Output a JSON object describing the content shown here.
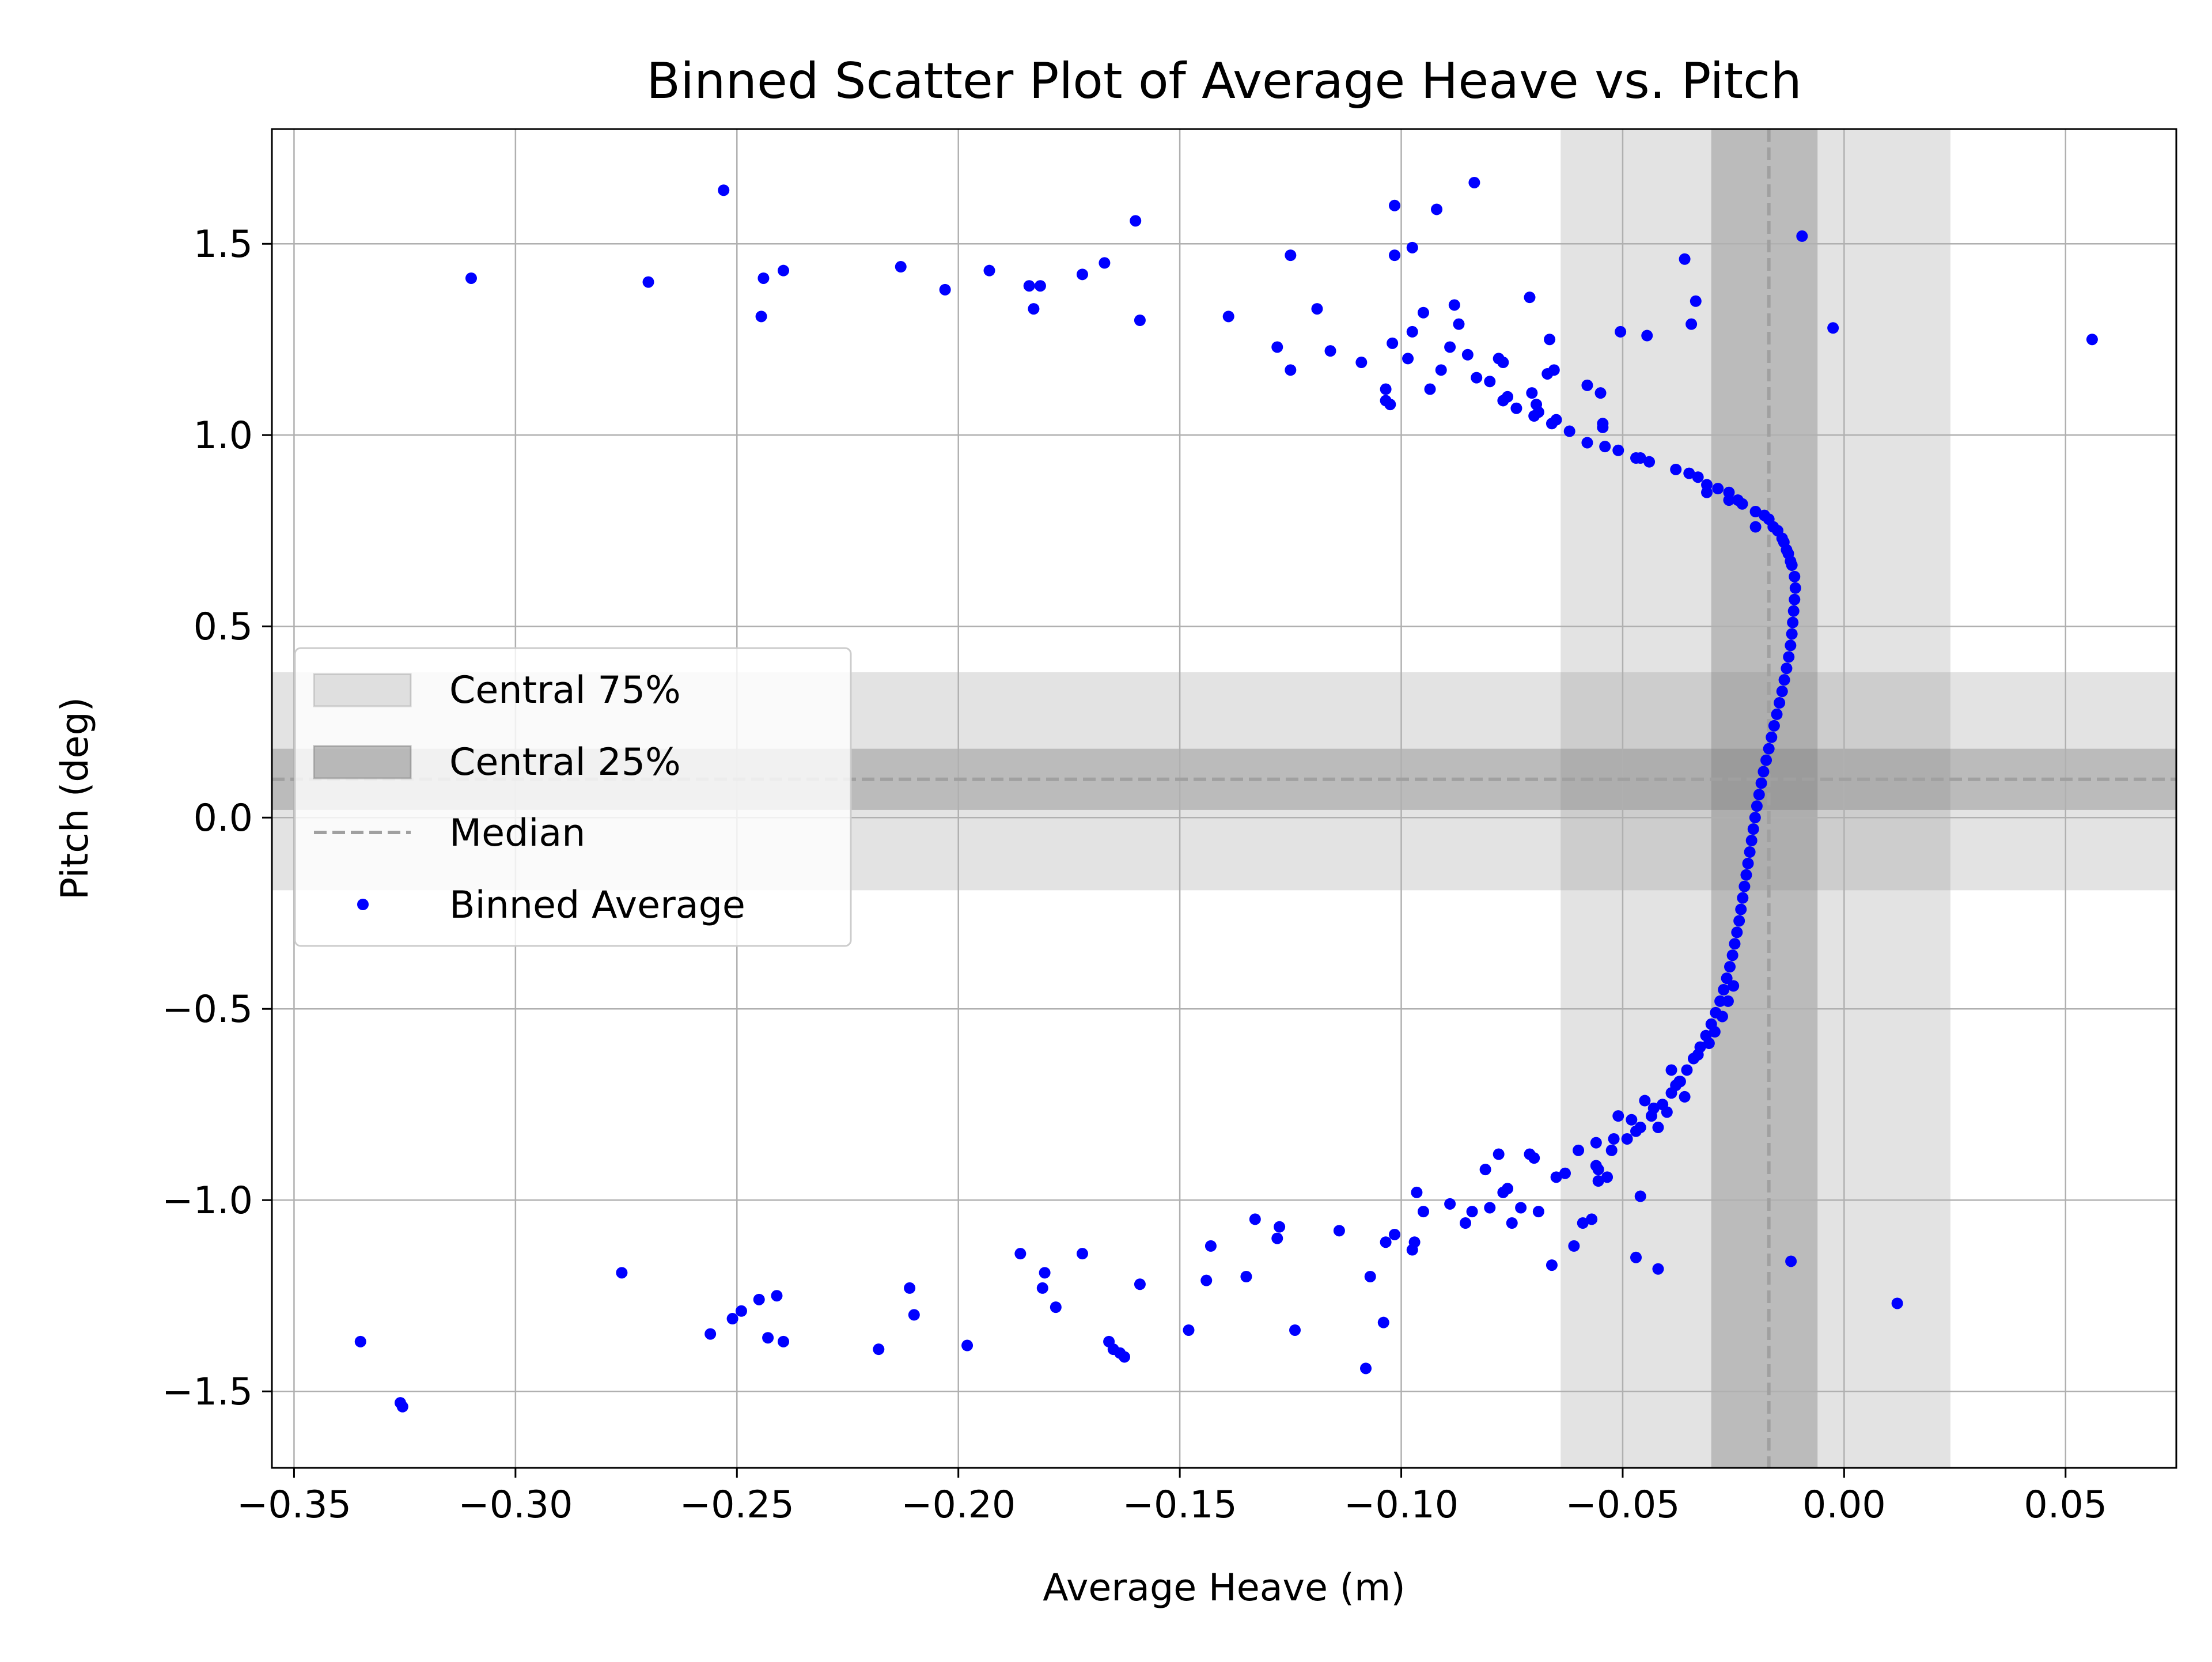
{
  "chart_data": {
    "type": "scatter",
    "title": "Binned Scatter Plot of Average Heave vs. Pitch",
    "xlabel": "Average Heave (m)",
    "ylabel": "Pitch (deg)",
    "xlim": [
      -0.355,
      0.075
    ],
    "ylim": [
      -1.7,
      1.8
    ],
    "xticks": [
      -0.35,
      -0.3,
      -0.25,
      -0.2,
      -0.15,
      -0.1,
      -0.05,
      0.0,
      0.05
    ],
    "xtick_labels": [
      "−0.35",
      "−0.30",
      "−0.25",
      "−0.20",
      "−0.15",
      "−0.10",
      "−0.05",
      "0.00",
      "0.05"
    ],
    "yticks": [
      -1.5,
      -1.0,
      -0.5,
      0.0,
      0.5,
      1.0,
      1.5
    ],
    "ytick_labels": [
      "−1.5",
      "−1.0",
      "−0.5",
      "0.0",
      "0.5",
      "1.0",
      "1.5"
    ],
    "grid": true,
    "legend_position": "center-left",
    "legend": [
      {
        "label": "Central 75%",
        "kind": "band-light"
      },
      {
        "label": "Central 25%",
        "kind": "band-dark"
      },
      {
        "label": "Median",
        "kind": "dashed-line"
      },
      {
        "label": "Binned Average",
        "kind": "marker"
      }
    ],
    "colors": {
      "points": "#0000ff",
      "median": "#a0a0a0",
      "band_light": "#808080",
      "band_dark": "#808080",
      "grid": "#b0b0b0"
    },
    "bands": {
      "x_central_75": [
        -0.064,
        0.024
      ],
      "x_central_25": [
        -0.03,
        -0.006
      ],
      "x_median": -0.017,
      "y_central_75": [
        -0.19,
        0.38
      ],
      "y_central_25": [
        0.02,
        0.18
      ],
      "y_median": 0.1
    },
    "series": [
      {
        "name": "Binned Average",
        "points": [
          [
            -0.011,
            0.6
          ],
          [
            -0.0112,
            0.57
          ],
          [
            -0.0114,
            0.54
          ],
          [
            -0.0116,
            0.51
          ],
          [
            -0.0118,
            0.48
          ],
          [
            -0.0121,
            0.45
          ],
          [
            -0.0125,
            0.42
          ],
          [
            -0.013,
            0.39
          ],
          [
            -0.0135,
            0.36
          ],
          [
            -0.014,
            0.33
          ],
          [
            -0.0146,
            0.3
          ],
          [
            -0.0152,
            0.27
          ],
          [
            -0.0158,
            0.24
          ],
          [
            -0.0164,
            0.21
          ],
          [
            -0.017,
            0.18
          ],
          [
            -0.0176,
            0.15
          ],
          [
            -0.0182,
            0.12
          ],
          [
            -0.0187,
            0.09
          ],
          [
            -0.0192,
            0.06
          ],
          [
            -0.0197,
            0.03
          ],
          [
            -0.0201,
            0.0
          ],
          [
            -0.0205,
            -0.03
          ],
          [
            -0.0209,
            -0.06
          ],
          [
            -0.0213,
            -0.09
          ],
          [
            -0.0217,
            -0.12
          ],
          [
            -0.0221,
            -0.15
          ],
          [
            -0.0225,
            -0.18
          ],
          [
            -0.0229,
            -0.21
          ],
          [
            -0.0233,
            -0.24
          ],
          [
            -0.0237,
            -0.27
          ],
          [
            -0.0242,
            -0.3
          ],
          [
            -0.0247,
            -0.33
          ],
          [
            -0.0252,
            -0.36
          ],
          [
            -0.0258,
            -0.39
          ],
          [
            -0.0265,
            -0.42
          ],
          [
            -0.0272,
            -0.45
          ],
          [
            -0.028,
            -0.48
          ],
          [
            -0.029,
            -0.51
          ],
          [
            -0.03,
            -0.54
          ],
          [
            -0.0312,
            -0.57
          ],
          [
            -0.0325,
            -0.6
          ],
          [
            -0.034,
            -0.63
          ],
          [
            -0.0355,
            -0.66
          ],
          [
            -0.0372,
            -0.69
          ],
          [
            -0.039,
            -0.72
          ],
          [
            -0.041,
            -0.75
          ],
          [
            -0.0435,
            -0.78
          ],
          [
            -0.046,
            -0.81
          ],
          [
            -0.049,
            -0.84
          ],
          [
            -0.0525,
            -0.87
          ],
          [
            -0.0112,
            0.63
          ],
          [
            -0.0118,
            0.66
          ],
          [
            -0.0126,
            0.69
          ],
          [
            -0.0136,
            0.72
          ],
          [
            -0.015,
            0.75
          ],
          [
            -0.017,
            0.78
          ],
          [
            -0.02,
            0.8
          ],
          [
            -0.024,
            0.83
          ],
          [
            -0.0285,
            0.86
          ],
          [
            -0.033,
            0.89
          ],
          [
            -0.038,
            0.91
          ],
          [
            -0.044,
            0.93
          ],
          [
            -0.051,
            0.96
          ],
          [
            -0.058,
            0.98
          ],
          [
            -0.062,
            1.01
          ],
          [
            -0.066,
            1.03
          ],
          [
            -0.07,
            1.05
          ],
          [
            -0.074,
            1.07
          ],
          [
            -0.077,
            1.09
          ],
          [
            -0.054,
            0.97
          ],
          [
            -0.046,
            0.94
          ],
          [
            -0.035,
            0.9
          ],
          [
            -0.031,
            0.87
          ],
          [
            -0.026,
            0.85
          ],
          [
            -0.023,
            0.82
          ],
          [
            -0.018,
            0.79
          ],
          [
            -0.016,
            0.76
          ],
          [
            -0.014,
            0.73
          ],
          [
            -0.013,
            0.7
          ],
          [
            -0.0121,
            0.67
          ],
          [
            -0.033,
            -0.62
          ],
          [
            -0.038,
            -0.7
          ],
          [
            -0.043,
            -0.76
          ],
          [
            -0.048,
            -0.79
          ],
          [
            -0.052,
            -0.84
          ],
          [
            -0.0555,
            -0.92
          ],
          [
            -0.042,
            -0.81
          ],
          [
            -0.045,
            -0.74
          ],
          [
            -0.039,
            -0.66
          ],
          [
            -0.036,
            -0.73
          ],
          [
            -0.025,
            -0.44
          ],
          [
            -0.0262,
            -0.48
          ],
          [
            -0.0275,
            -0.52
          ],
          [
            -0.0292,
            -0.56
          ],
          [
            -0.0305,
            -0.59
          ],
          [
            -0.056,
            -0.85
          ],
          [
            -0.051,
            -0.78
          ],
          [
            -0.047,
            -0.82
          ],
          [
            -0.04,
            -0.77
          ],
          [
            -0.037,
            -0.69
          ],
          [
            -0.031,
            0.85
          ],
          [
            -0.026,
            0.83
          ],
          [
            -0.02,
            0.76
          ],
          [
            -0.047,
            0.94
          ],
          [
            -0.0545,
            1.02
          ],
          [
            -0.31,
            1.41
          ],
          [
            -0.27,
            1.4
          ],
          [
            -0.253,
            1.64
          ],
          [
            -0.244,
            1.41
          ],
          [
            -0.2445,
            1.31
          ],
          [
            -0.2395,
            1.43
          ],
          [
            -0.213,
            1.44
          ],
          [
            -0.203,
            1.38
          ],
          [
            -0.193,
            1.43
          ],
          [
            -0.184,
            1.39
          ],
          [
            -0.183,
            1.33
          ],
          [
            -0.1815,
            1.39
          ],
          [
            -0.172,
            1.42
          ],
          [
            -0.167,
            1.45
          ],
          [
            -0.16,
            1.56
          ],
          [
            -0.159,
            1.3
          ],
          [
            -0.139,
            1.31
          ],
          [
            -0.128,
            1.23
          ],
          [
            -0.125,
            1.47
          ],
          [
            -0.125,
            1.17
          ],
          [
            -0.119,
            1.33
          ],
          [
            -0.116,
            1.22
          ],
          [
            -0.109,
            1.19
          ],
          [
            -0.1035,
            1.12
          ],
          [
            -0.1035,
            1.09
          ],
          [
            -0.1025,
            1.08
          ],
          [
            -0.1015,
            1.6
          ],
          [
            -0.1015,
            1.47
          ],
          [
            -0.102,
            1.24
          ],
          [
            -0.0985,
            1.2
          ],
          [
            -0.0975,
            1.49
          ],
          [
            -0.0975,
            1.27
          ],
          [
            -0.095,
            1.32
          ],
          [
            -0.0935,
            1.12
          ],
          [
            -0.092,
            1.59
          ],
          [
            -0.091,
            1.17
          ],
          [
            -0.089,
            1.23
          ],
          [
            -0.088,
            1.34
          ],
          [
            -0.087,
            1.29
          ],
          [
            -0.085,
            1.21
          ],
          [
            -0.0835,
            1.66
          ],
          [
            -0.083,
            1.15
          ],
          [
            -0.08,
            1.14
          ],
          [
            -0.078,
            1.2
          ],
          [
            -0.077,
            1.19
          ],
          [
            -0.076,
            1.1
          ],
          [
            -0.071,
            1.36
          ],
          [
            -0.0705,
            1.11
          ],
          [
            -0.0695,
            1.08
          ],
          [
            -0.069,
            1.06
          ],
          [
            -0.067,
            1.16
          ],
          [
            -0.0665,
            1.25
          ],
          [
            -0.0655,
            1.17
          ],
          [
            -0.065,
            1.04
          ],
          [
            -0.058,
            1.13
          ],
          [
            -0.055,
            1.11
          ],
          [
            -0.0545,
            1.03
          ],
          [
            -0.0505,
            1.27
          ],
          [
            -0.0445,
            1.26
          ],
          [
            -0.036,
            1.46
          ],
          [
            -0.0345,
            1.29
          ],
          [
            -0.0335,
            1.35
          ],
          [
            -0.0095,
            1.52
          ],
          [
            -0.0025,
            1.28
          ],
          [
            0.056,
            1.25
          ],
          [
            -0.335,
            -1.37
          ],
          [
            -0.326,
            -1.53
          ],
          [
            -0.3255,
            -1.54
          ],
          [
            -0.276,
            -1.19
          ],
          [
            -0.256,
            -1.35
          ],
          [
            -0.251,
            -1.31
          ],
          [
            -0.249,
            -1.29
          ],
          [
            -0.245,
            -1.26
          ],
          [
            -0.243,
            -1.36
          ],
          [
            -0.241,
            -1.25
          ],
          [
            -0.2395,
            -1.37
          ],
          [
            -0.218,
            -1.39
          ],
          [
            -0.211,
            -1.23
          ],
          [
            -0.21,
            -1.3
          ],
          [
            -0.198,
            -1.38
          ],
          [
            -0.186,
            -1.14
          ],
          [
            -0.181,
            -1.23
          ],
          [
            -0.1805,
            -1.19
          ],
          [
            -0.178,
            -1.28
          ],
          [
            -0.172,
            -1.14
          ],
          [
            -0.166,
            -1.37
          ],
          [
            -0.165,
            -1.39
          ],
          [
            -0.1635,
            -1.4
          ],
          [
            -0.1625,
            -1.41
          ],
          [
            -0.159,
            -1.22
          ],
          [
            -0.148,
            -1.34
          ],
          [
            -0.144,
            -1.21
          ],
          [
            -0.143,
            -1.12
          ],
          [
            -0.135,
            -1.2
          ],
          [
            -0.133,
            -1.05
          ],
          [
            -0.128,
            -1.1
          ],
          [
            -0.1275,
            -1.07
          ],
          [
            -0.124,
            -1.34
          ],
          [
            -0.114,
            -1.08
          ],
          [
            -0.108,
            -1.44
          ],
          [
            -0.107,
            -1.2
          ],
          [
            -0.104,
            -1.32
          ],
          [
            -0.1035,
            -1.11
          ],
          [
            -0.1015,
            -1.09
          ],
          [
            -0.0975,
            -1.13
          ],
          [
            -0.097,
            -1.11
          ],
          [
            -0.0965,
            -0.98
          ],
          [
            -0.095,
            -1.03
          ],
          [
            -0.089,
            -1.01
          ],
          [
            -0.0855,
            -1.06
          ],
          [
            -0.084,
            -1.03
          ],
          [
            -0.081,
            -0.92
          ],
          [
            -0.08,
            -1.02
          ],
          [
            -0.078,
            -0.88
          ],
          [
            -0.077,
            -0.98
          ],
          [
            -0.076,
            -0.97
          ],
          [
            -0.075,
            -1.06
          ],
          [
            -0.073,
            -1.02
          ],
          [
            -0.071,
            -0.88
          ],
          [
            -0.07,
            -0.89
          ],
          [
            -0.069,
            -1.03
          ],
          [
            -0.066,
            -1.17
          ],
          [
            -0.065,
            -0.94
          ],
          [
            -0.063,
            -0.93
          ],
          [
            -0.061,
            -1.12
          ],
          [
            -0.06,
            -0.87
          ],
          [
            -0.059,
            -1.06
          ],
          [
            -0.057,
            -1.05
          ],
          [
            -0.056,
            -0.91
          ],
          [
            -0.0555,
            -0.95
          ],
          [
            -0.0535,
            -0.94
          ],
          [
            -0.047,
            -1.15
          ],
          [
            -0.046,
            -0.99
          ],
          [
            -0.042,
            -1.18
          ],
          [
            -0.012,
            -1.16
          ],
          [
            0.012,
            -1.27
          ]
        ]
      }
    ]
  }
}
